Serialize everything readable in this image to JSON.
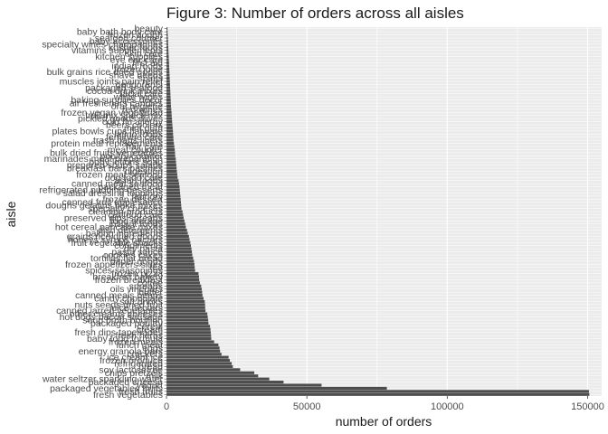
{
  "chart_data": {
    "type": "bar",
    "orientation": "horizontal",
    "title": "Figure 3: Number of orders across all aisles",
    "xlabel": "number of orders",
    "ylabel": "aisle",
    "xlim": [
      0,
      155000
    ],
    "xticks": [
      0,
      50000,
      100000,
      150000
    ],
    "grid": true,
    "bar_color": "#4d4d4d",
    "panel_color": "#ebebeb",
    "categories": [
      "fresh vegetables",
      "fresh fruits",
      "packaged vegetables fruits",
      "yogurt",
      "packaged cheese",
      "water seltzer sparkling water",
      "milk",
      "chips pretzels",
      "soy lactosefree",
      "bread",
      "refrigerated",
      "frozen produce",
      "ice cream ice",
      "crackers",
      "energy granola bars",
      "eggs",
      "lunch meat",
      "frozen meals",
      "baby food formula",
      "fresh herbs",
      "fresh dips tapenades",
      "cream",
      "cereal",
      "packaged poultry",
      "soup broth bouillon",
      "hot dogs bacon sausage",
      "other creams cheeses",
      "canned jarred vegetables",
      "juice nectars",
      "nuts seeds dried fruit",
      "soft drinks",
      "candy chocolate",
      "canned meals beans",
      "butter",
      "oils vinegars",
      "spreads",
      "coffee",
      "frozen breakfast",
      "breakfast bakery",
      "frozen pizza",
      "spices seasonings",
      "tea",
      "frozen appetizers sides",
      "paper goods",
      "tortillas flat bread",
      "cookies cakes",
      "pasta sauce",
      "dry pasta",
      "condiments",
      "fruit vegetable snacks",
      "honeys syrups nectars",
      "grains rice dried goods",
      "baking ingredients",
      "dish detergents",
      "hot cereal pancake mixes",
      "instant foods",
      "food storage",
      "preserved dips spreads",
      "cat food care",
      "cleaning products",
      "specialty cheeses",
      "doughs gelatins bake mixes",
      "canned fruit applesauce",
      "frozen dessert",
      "laundry",
      "salad dressing toppings",
      "refrigerated pudding desserts",
      "packaged meat",
      "canned meat seafood",
      "asian foods",
      "dog food care",
      "frozen meat seafood",
      "digestion",
      "breakfast bars pastries",
      "prepared soups salads",
      "body lotions soap",
      "marinades meat preparation",
      "poultry counter",
      "bulk dried fruits vegetables",
      "meat counter",
      "hair care",
      "protein meal replacements",
      "trash bags liners",
      "feminine care",
      "latino foods",
      "plates bowls cups flatware",
      "mint gum",
      "beers coolers",
      "cold flu allergy",
      "pickled goods olives",
      "trail mix snack mix",
      "frozen vegan vegetarian",
      "red wines",
      "oral hygiene",
      "air fresheners candles",
      "baking supplies decor",
      "white wines",
      "facial care",
      "cocoa drink mixes",
      "packaged seafood",
      "deodorants",
      "muscles joints pain relief",
      "spirits",
      "shave needs",
      "bulk grains rice dried goods",
      "frozen juice",
      "indian foods",
      "first aid",
      "eye ear care",
      "kitchen supplies",
      "skin care",
      "vitamins supplements",
      "kosher foods",
      "specialty wines champagnes",
      "baby accessories",
      "seafood counter",
      "frozen dough",
      "baby bath body care",
      "beauty"
    ],
    "values": [
      150609,
      150473,
      78493,
      55240,
      41699,
      36617,
      32644,
      31269,
      26240,
      23635,
      23228,
      22557,
      22120,
      19592,
      19088,
      18905,
      18501,
      16982,
      15941,
      15880,
      15775,
      15680,
      15497,
      14962,
      14858,
      14696,
      14550,
      13898,
      13792,
      13740,
      13632,
      13200,
      12820,
      12708,
      12560,
      12350,
      11900,
      11650,
      11580,
      11400,
      10200,
      10050,
      9950,
      9800,
      9500,
      9200,
      9050,
      8900,
      8700,
      8500,
      8200,
      8000,
      7600,
      7300,
      6900,
      6700,
      6400,
      6100,
      5900,
      5700,
      5350,
      5250,
      5150,
      5050,
      4950,
      4850,
      4750,
      4650,
      4500,
      4300,
      3950,
      3850,
      3700,
      3600,
      3500,
      3400,
      3300,
      3100,
      3050,
      2950,
      2800,
      2650,
      2500,
      2450,
      2350,
      2300,
      2200,
      2100,
      2000,
      1950,
      1850,
      1800,
      1700,
      1600,
      1550,
      1500,
      1450,
      1400,
      1350,
      1300,
      1250,
      1200,
      1150,
      1100,
      1050,
      1000,
      950,
      900,
      850,
      800,
      750,
      700,
      650,
      600,
      550,
      500,
      450,
      400,
      350
    ]
  }
}
